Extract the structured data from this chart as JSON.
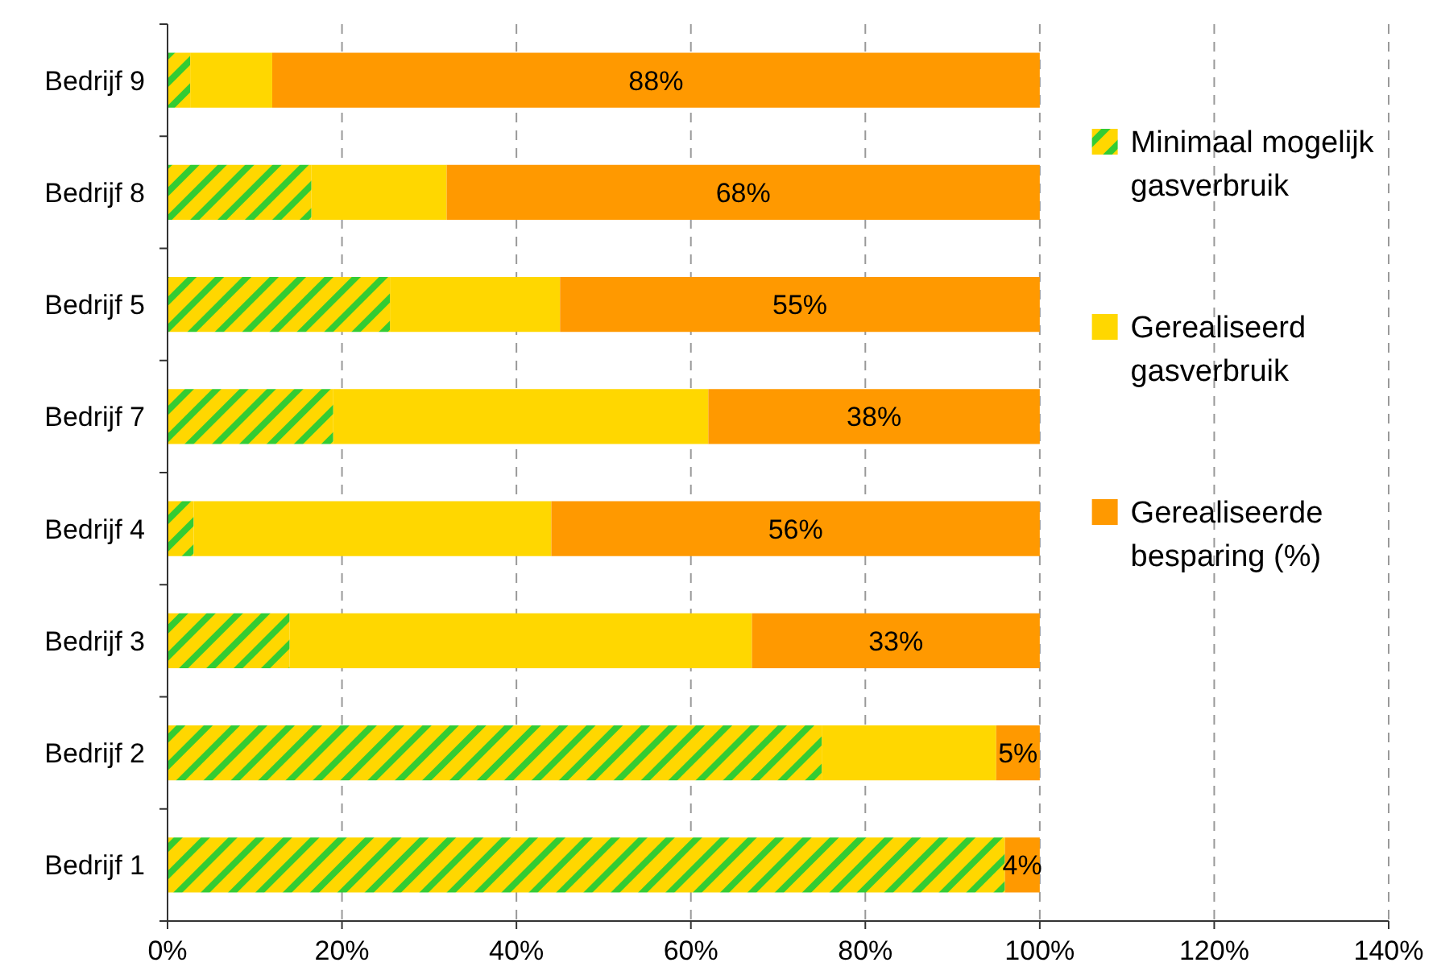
{
  "chart_data": {
    "type": "bar",
    "orientation": "horizontal",
    "stacked": true,
    "categories": [
      "Bedrijf 9",
      "Bedrijf 8",
      "Bedrijf 5",
      "Bedrijf 7",
      "Bedrijf 4",
      "Bedrijf 3",
      "Bedrijf 2",
      "Bedrijf 1"
    ],
    "series": [
      {
        "name": "Minimaal mogelijk gasverbruik",
        "color": "#33cc33",
        "values": [
          2.6,
          16.5,
          25.5,
          19,
          3,
          14,
          75,
          96
        ]
      },
      {
        "name": "Gerealiseerd gasverbruik",
        "color": "#ffd700",
        "values": [
          9.4,
          15.5,
          19.5,
          43,
          41,
          53,
          20,
          0
        ]
      },
      {
        "name": "Gerealiseerde besparing (%)",
        "color": "#ff9900",
        "values": [
          88,
          68,
          55,
          38,
          56,
          33,
          5,
          4
        ],
        "value_labels": [
          "88%",
          "68%",
          "55%",
          "38%",
          "56%",
          "33%",
          "5%",
          "4%"
        ]
      }
    ],
    "xlim": [
      0,
      140
    ],
    "xticks": [
      {
        "value": 0,
        "label": "0%"
      },
      {
        "value": 20,
        "label": "20%"
      },
      {
        "value": 40,
        "label": "40%"
      },
      {
        "value": 60,
        "label": "60%"
      },
      {
        "value": 80,
        "label": "80%"
      },
      {
        "value": 100,
        "label": "100%"
      },
      {
        "value": 120,
        "label": "120%"
      },
      {
        "value": 140,
        "label": "140%"
      }
    ],
    "grid": "x",
    "legend": "right"
  }
}
